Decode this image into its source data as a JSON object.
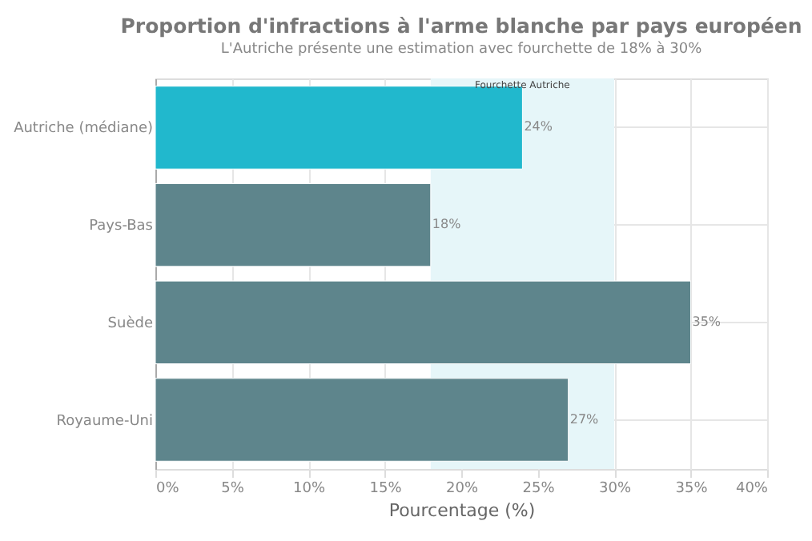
{
  "chart_data": {
    "type": "bar",
    "orientation": "horizontal",
    "title": "Proportion d'infractions à l'arme blanche par pays européen",
    "subtitle": "L'Autriche présente une estimation avec fourchette de 18% à 30%",
    "xlabel": "Pourcentage (%)",
    "categories": [
      "Autriche (médiane)",
      "Pays-Bas",
      "Suède",
      "Royaume-Uni"
    ],
    "values": [
      24,
      18,
      35,
      27
    ],
    "colors": [
      "#21b8cd",
      "#5e858c",
      "#5e858c",
      "#5e858c"
    ],
    "value_labels": [
      "24%",
      "18%",
      "35%",
      "27%"
    ],
    "xlim": [
      0,
      40
    ],
    "xticks": [
      {
        "value": 0,
        "label": "0%"
      },
      {
        "value": 5,
        "label": "5%"
      },
      {
        "value": 10,
        "label": "10%"
      },
      {
        "value": 15,
        "label": "15%"
      },
      {
        "value": 20,
        "label": "20%"
      },
      {
        "value": 25,
        "label": "25%"
      },
      {
        "value": 30,
        "label": "30%"
      },
      {
        "value": 35,
        "label": "35%"
      },
      {
        "value": 40,
        "label": "40%"
      }
    ],
    "bands": [
      {
        "axis": "x",
        "from": 18,
        "to": 30,
        "label": "Fourchette Autriche",
        "color": "#e6f6f9"
      }
    ],
    "grid": true
  }
}
